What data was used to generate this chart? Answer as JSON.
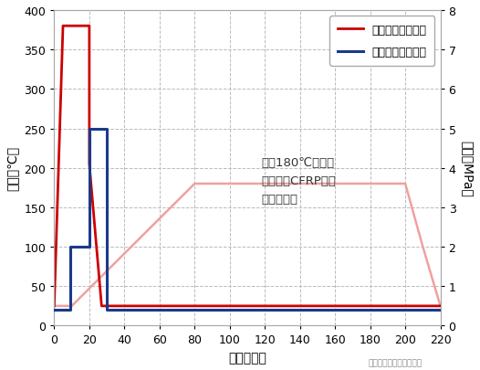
{
  "title": "",
  "xlabel": "時間（分）",
  "ylabel_left": "温度（℃）",
  "ylabel_right": "圧力（MPa）",
  "xlim": [
    0,
    220
  ],
  "ylim_left": [
    0,
    400
  ],
  "ylim_right": [
    0,
    8
  ],
  "xticks": [
    0,
    20,
    40,
    60,
    80,
    100,
    120,
    140,
    160,
    180,
    200,
    220
  ],
  "yticks_left": [
    0,
    50,
    100,
    150,
    200,
    250,
    300,
    350,
    400
  ],
  "yticks_right": [
    0,
    1,
    2,
    3,
    4,
    5,
    6,
    7,
    8
  ],
  "temp_x": [
    0,
    5,
    20,
    20,
    27,
    30,
    220
  ],
  "temp_y": [
    25,
    380,
    380,
    205,
    25,
    25,
    25
  ],
  "pressure_x": [
    0,
    9,
    9,
    20,
    20,
    30,
    30,
    220
  ],
  "pressure_y": [
    0.4,
    0.4,
    2.0,
    2.0,
    5.0,
    5.0,
    0.4,
    0.4
  ],
  "epoxy_x": [
    0,
    10,
    80,
    200,
    210,
    220
  ],
  "epoxy_y": [
    25,
    25,
    180,
    180,
    100,
    25
  ],
  "temp_color": "#cc0000",
  "pressure_color": "#1a3a8a",
  "epoxy_color": "#f0a0a0",
  "legend_temp": "熱可塩プレス温度",
  "legend_pressure": "熱可塩プレス圧力",
  "annotation_line1": "当社180℃熱硬化",
  "annotation_line2": "エポキシCFRP成形",
  "annotation_line3": "温度条件例",
  "bg_color": "#ffffff",
  "grid_color": "#bbbbbb",
  "watermark": "碘纤维及其复合材料技术"
}
